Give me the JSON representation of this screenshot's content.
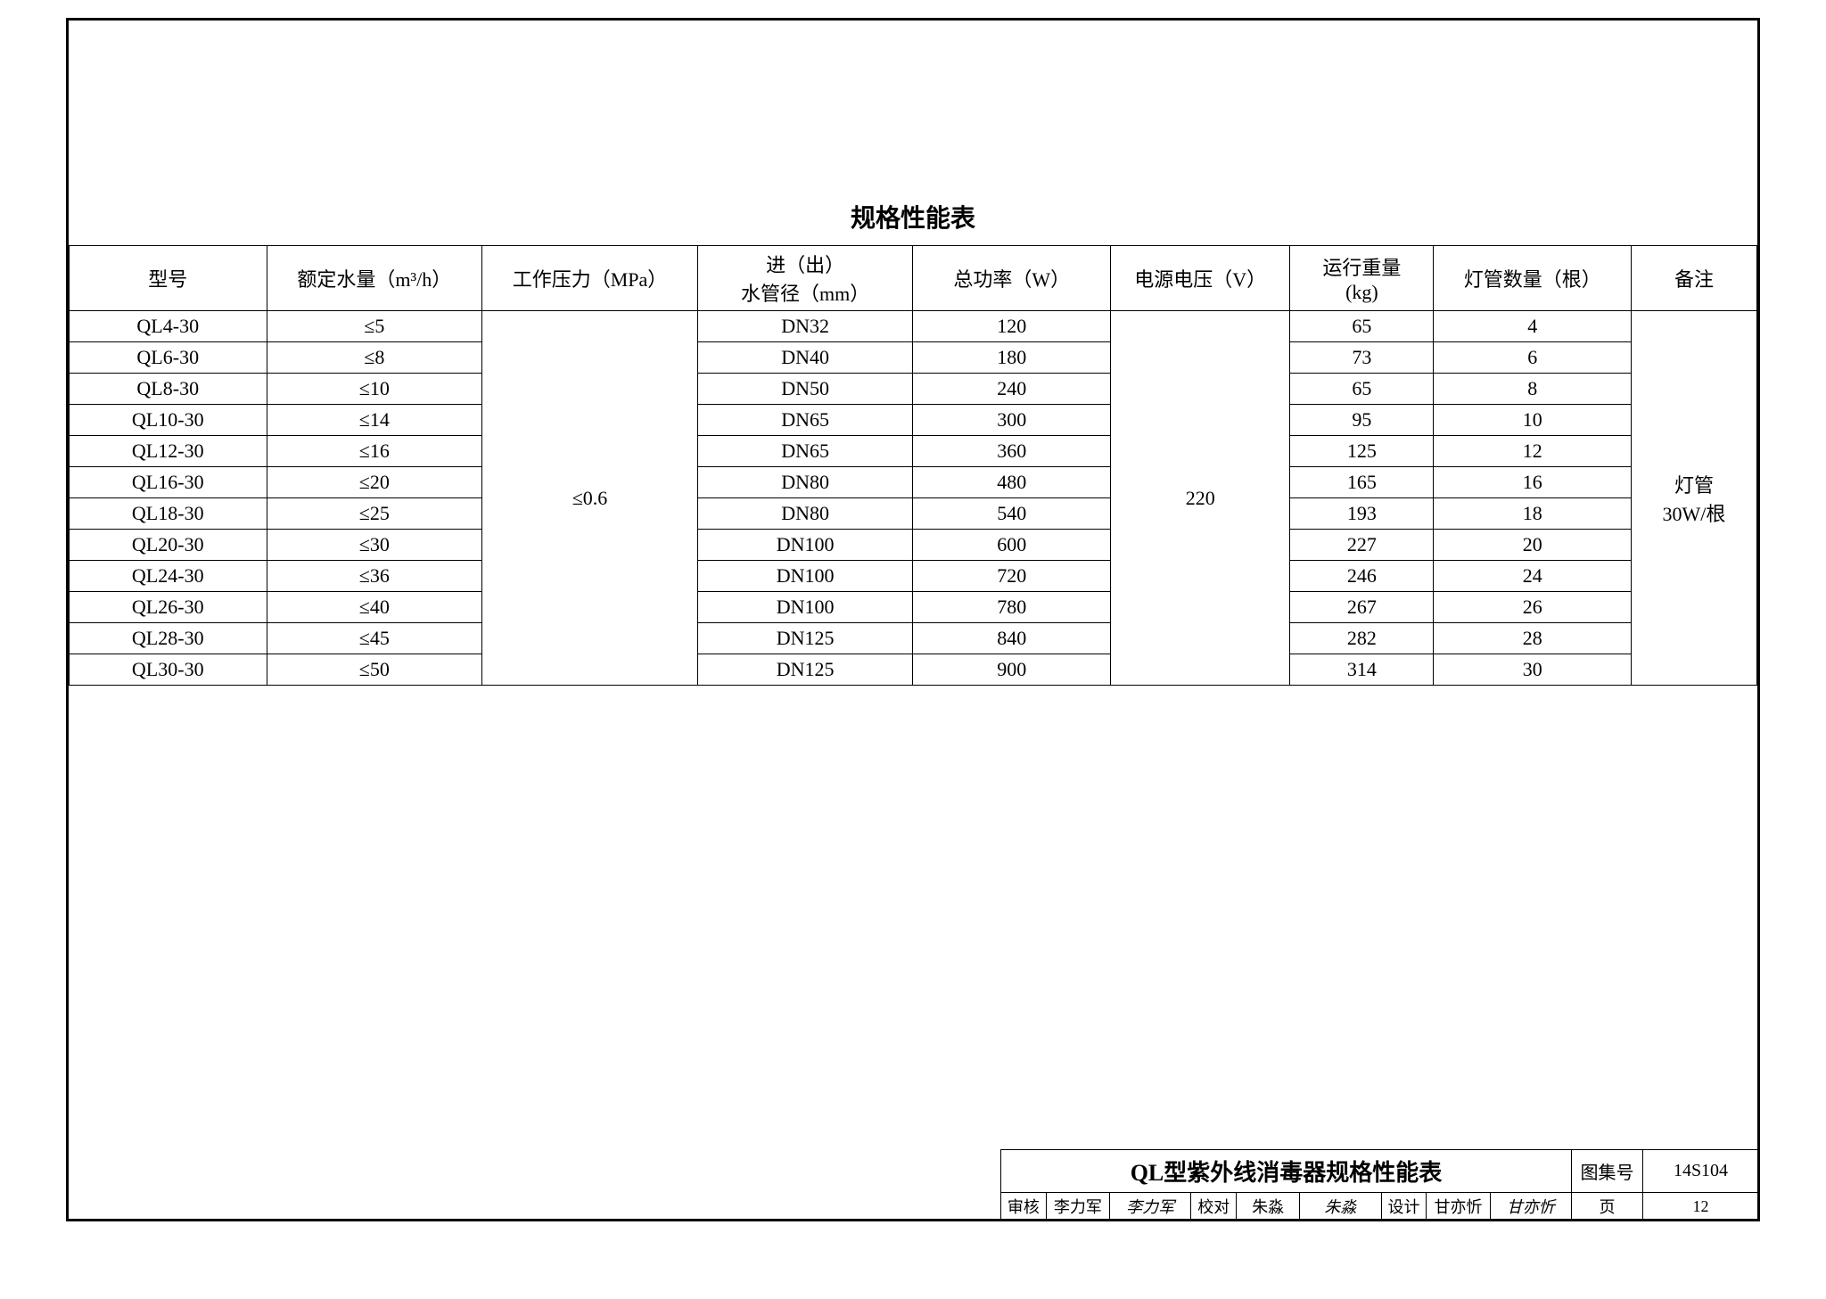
{
  "title": "规格性能表",
  "table": {
    "headers": {
      "model": "型号",
      "flow": "额定水量（m³/h）",
      "pressure": "工作压力（MPa）",
      "pipe": "进（出）\n水管径（mm）",
      "power": "总功率（W）",
      "voltage": "电源电压（V）",
      "weight": "运行重量\n(kg)",
      "lamp": "灯管数量（根）",
      "note": "备注"
    },
    "merged": {
      "pressure": "≤0.6",
      "voltage": "220",
      "note": "灯管\n30W/根"
    },
    "rows": [
      {
        "model": "QL4-30",
        "flow": "≤5",
        "pipe": "DN32",
        "power": "120",
        "weight": "65",
        "lamp": "4"
      },
      {
        "model": "QL6-30",
        "flow": "≤8",
        "pipe": "DN40",
        "power": "180",
        "weight": "73",
        "lamp": "6"
      },
      {
        "model": "QL8-30",
        "flow": "≤10",
        "pipe": "DN50",
        "power": "240",
        "weight": "65",
        "lamp": "8"
      },
      {
        "model": "QL10-30",
        "flow": "≤14",
        "pipe": "DN65",
        "power": "300",
        "weight": "95",
        "lamp": "10"
      },
      {
        "model": "QL12-30",
        "flow": "≤16",
        "pipe": "DN65",
        "power": "360",
        "weight": "125",
        "lamp": "12"
      },
      {
        "model": "QL16-30",
        "flow": "≤20",
        "pipe": "DN80",
        "power": "480",
        "weight": "165",
        "lamp": "16"
      },
      {
        "model": "QL18-30",
        "flow": "≤25",
        "pipe": "DN80",
        "power": "540",
        "weight": "193",
        "lamp": "18"
      },
      {
        "model": "QL20-30",
        "flow": "≤30",
        "pipe": "DN100",
        "power": "600",
        "weight": "227",
        "lamp": "20"
      },
      {
        "model": "QL24-30",
        "flow": "≤36",
        "pipe": "DN100",
        "power": "720",
        "weight": "246",
        "lamp": "24"
      },
      {
        "model": "QL26-30",
        "flow": "≤40",
        "pipe": "DN100",
        "power": "780",
        "weight": "267",
        "lamp": "26"
      },
      {
        "model": "QL28-30",
        "flow": "≤45",
        "pipe": "DN125",
        "power": "840",
        "weight": "282",
        "lamp": "28"
      },
      {
        "model": "QL30-30",
        "flow": "≤50",
        "pipe": "DN125",
        "power": "900",
        "weight": "314",
        "lamp": "30"
      }
    ]
  },
  "titleblock": {
    "main_title": "QL型紫外线消毒器规格性能表",
    "atlas_label": "图集号",
    "atlas_value": "14S104",
    "review_label": "审核",
    "review_name": "李力军",
    "review_sig": "李力军",
    "check_label": "校对",
    "check_name": "朱淼",
    "check_sig": "朱淼",
    "design_label": "设计",
    "design_name": "甘亦忻",
    "design_sig": "甘亦忻",
    "page_label": "页",
    "page_value": "12"
  },
  "styling": {
    "border_color": "#000000",
    "background": "#ffffff",
    "title_fontsize": 28,
    "cell_fontsize": 22,
    "titleblock_fontsize": 20,
    "font_family": "SimSun"
  }
}
